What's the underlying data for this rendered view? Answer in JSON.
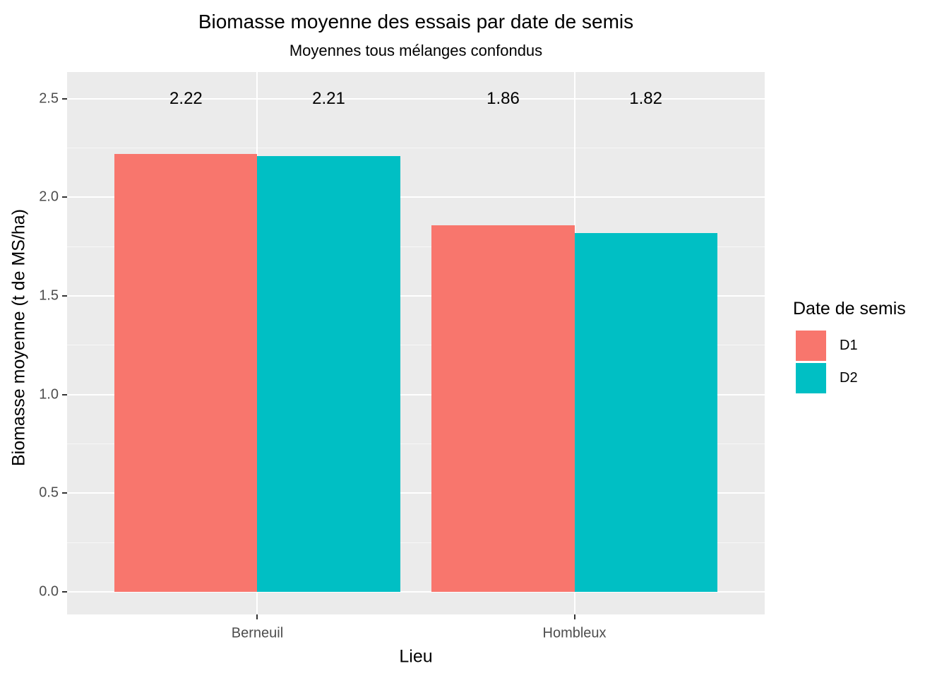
{
  "header": {
    "title": "Biomasse moyenne des essais par date de semis",
    "subtitle": "Moyennes tous mélanges confondus"
  },
  "chart_data": {
    "type": "bar",
    "title": "Biomasse moyenne des essais par date de semis",
    "subtitle": "Moyennes tous mélanges confondus",
    "xlabel": "Lieu",
    "ylabel": "Biomasse moyenne (t de MS/ha)",
    "categories": [
      "Berneuil",
      "Hombleux"
    ],
    "series": [
      {
        "name": "D1",
        "color": "#F8766D",
        "values": [
          2.22,
          1.86
        ]
      },
      {
        "name": "D2",
        "color": "#00BFC4",
        "values": [
          2.21,
          1.82
        ]
      }
    ],
    "value_labels": [
      "2.22",
      "2.21",
      "1.86",
      "1.82"
    ],
    "value_label_y": 2.5,
    "yticks": [
      "0.0",
      "0.5",
      "1.0",
      "1.5",
      "2.0",
      "2.5"
    ],
    "ytick_values": [
      0,
      0.5,
      1,
      1.5,
      2,
      2.5
    ],
    "minor_tick_values": [
      0.25,
      0.75,
      1.25,
      1.75,
      2.25
    ],
    "ylim": [
      -0.114,
      2.635
    ],
    "grid": true,
    "legend": {
      "title": "Date de semis",
      "position": "right",
      "entries": [
        {
          "label": "D1",
          "color": "#F8766D"
        },
        {
          "label": "D2",
          "color": "#00BFC4"
        }
      ]
    },
    "colors": {
      "panel_bg": "#EBEBEB",
      "grid_major": "#FFFFFF",
      "grid_minor": "#F5F5F5",
      "axis_text": "#4D4D4D",
      "axis_title": "#000000",
      "tick_mark": "#333333",
      "label_text": "#000000"
    }
  }
}
